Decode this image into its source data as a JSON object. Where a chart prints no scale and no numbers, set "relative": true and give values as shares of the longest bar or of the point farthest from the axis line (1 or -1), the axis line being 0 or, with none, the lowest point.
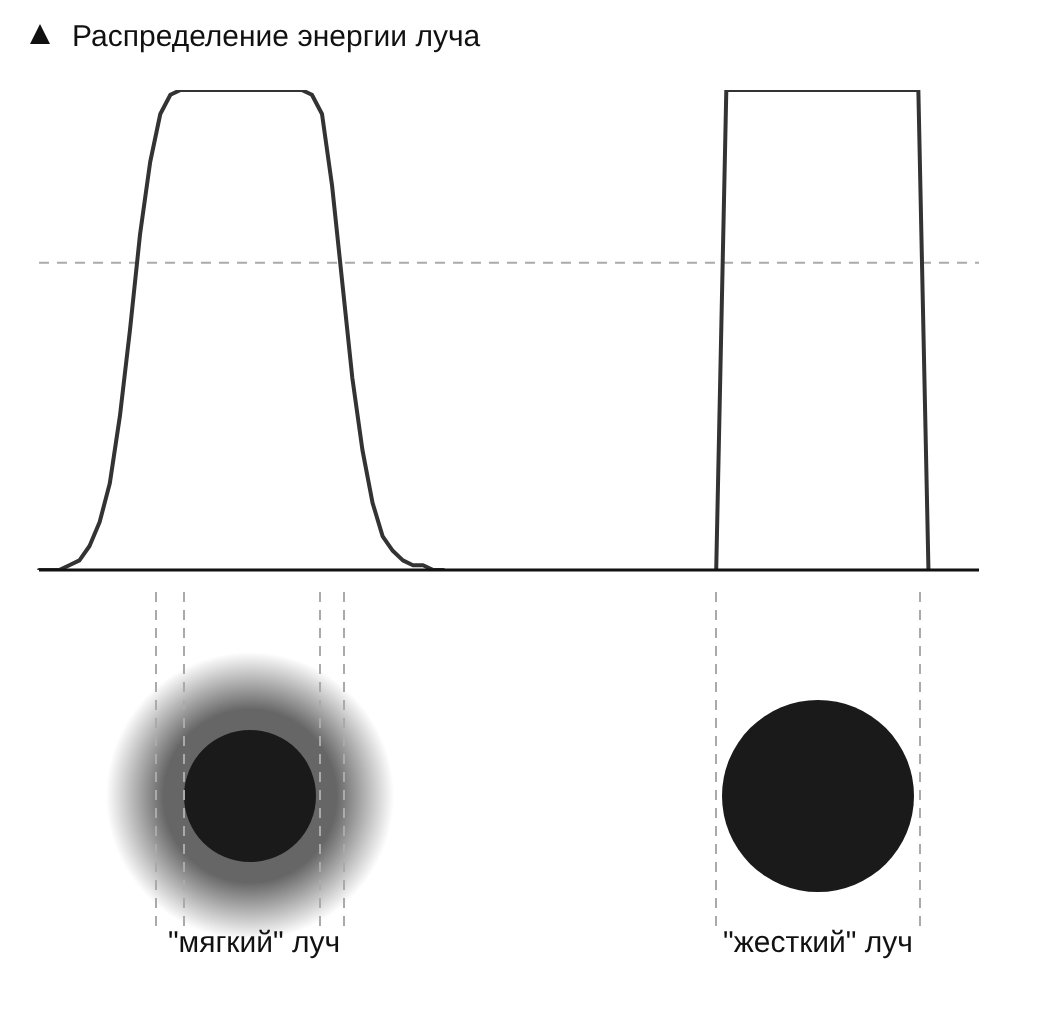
{
  "chart_data": {
    "type": "line",
    "title": "Распределение энергии луча",
    "relative": true,
    "grid": false,
    "legend": false,
    "marker": "none",
    "line_style": "solid",
    "categories": [
      null,
      null,
      null,
      null,
      null,
      null,
      null,
      null,
      null,
      null,
      null,
      null,
      null,
      null,
      null,
      null,
      null,
      null,
      null,
      null,
      null,
      null,
      null,
      null,
      null,
      null,
      null,
      null,
      null,
      null,
      null,
      null,
      null,
      null,
      null,
      null,
      null,
      null,
      null,
      null,
      null,
      null,
      null,
      null,
      null,
      null,
      null,
      null,
      null,
      null,
      null,
      null,
      null,
      null,
      null,
      null,
      null,
      null,
      null,
      null,
      null,
      null,
      null,
      null,
      null,
      null,
      null,
      null,
      null,
      null,
      null,
      null,
      null,
      null,
      null,
      null,
      null,
      null,
      null,
      null,
      null,
      null,
      null,
      null,
      null,
      null,
      null,
      null,
      null,
      null,
      null,
      null,
      null,
      null
    ],
    "series": [
      {
        "color": "#333333",
        "values": [
          0,
          0,
          0,
          0.01,
          0.02,
          0.05,
          0.1,
          0.18,
          0.32,
          0.5,
          0.7,
          0.85,
          0.95,
          0.99,
          1,
          1,
          1,
          1,
          1,
          1,
          1,
          1,
          1,
          1,
          1,
          1,
          1,
          0.99,
          0.95,
          0.8,
          0.6,
          0.4,
          0.25,
          0.14,
          0.07,
          0.04,
          0.02,
          0.01,
          0.01,
          0,
          0,
          null,
          null,
          null,
          null,
          null,
          null,
          null,
          null,
          null,
          null,
          null,
          null,
          null,
          null,
          null,
          null,
          null,
          null,
          null,
          null,
          null,
          null,
          null,
          null,
          null,
          null,
          null,
          null,
          null,
          null,
          null,
          null,
          null,
          null,
          null,
          null,
          null,
          null,
          null,
          null,
          null,
          null,
          null,
          null,
          null,
          null,
          null,
          null,
          null,
          null,
          null,
          null,
          null
        ]
      },
      {
        "color": "#333333",
        "values": [
          null,
          null,
          null,
          null,
          null,
          null,
          null,
          null,
          null,
          null,
          null,
          null,
          null,
          null,
          null,
          null,
          null,
          null,
          null,
          null,
          null,
          null,
          null,
          null,
          null,
          null,
          null,
          null,
          null,
          null,
          null,
          null,
          null,
          null,
          null,
          null,
          null,
          null,
          null,
          null,
          null,
          null,
          null,
          null,
          null,
          null,
          null,
          null,
          null,
          null,
          null,
          null,
          null,
          null,
          null,
          null,
          null,
          null,
          null,
          null,
          null,
          null,
          null,
          null,
          null,
          null,
          null,
          0,
          1,
          1,
          1,
          1,
          1,
          1,
          1,
          1,
          1,
          1,
          1,
          1,
          1,
          1,
          1,
          1,
          1,
          1,
          1,
          1,
          0,
          null,
          null,
          null,
          null,
          null
        ]
      }
    ],
    "ref_lines": [
      {
        "axis": "y",
        "value": 0.64,
        "color": "#aaaaaa",
        "line_style": "dashed"
      }
    ],
    "annotations": [
      "\"мягкий\" луч",
      "\"жесткий\" луч"
    ]
  }
}
